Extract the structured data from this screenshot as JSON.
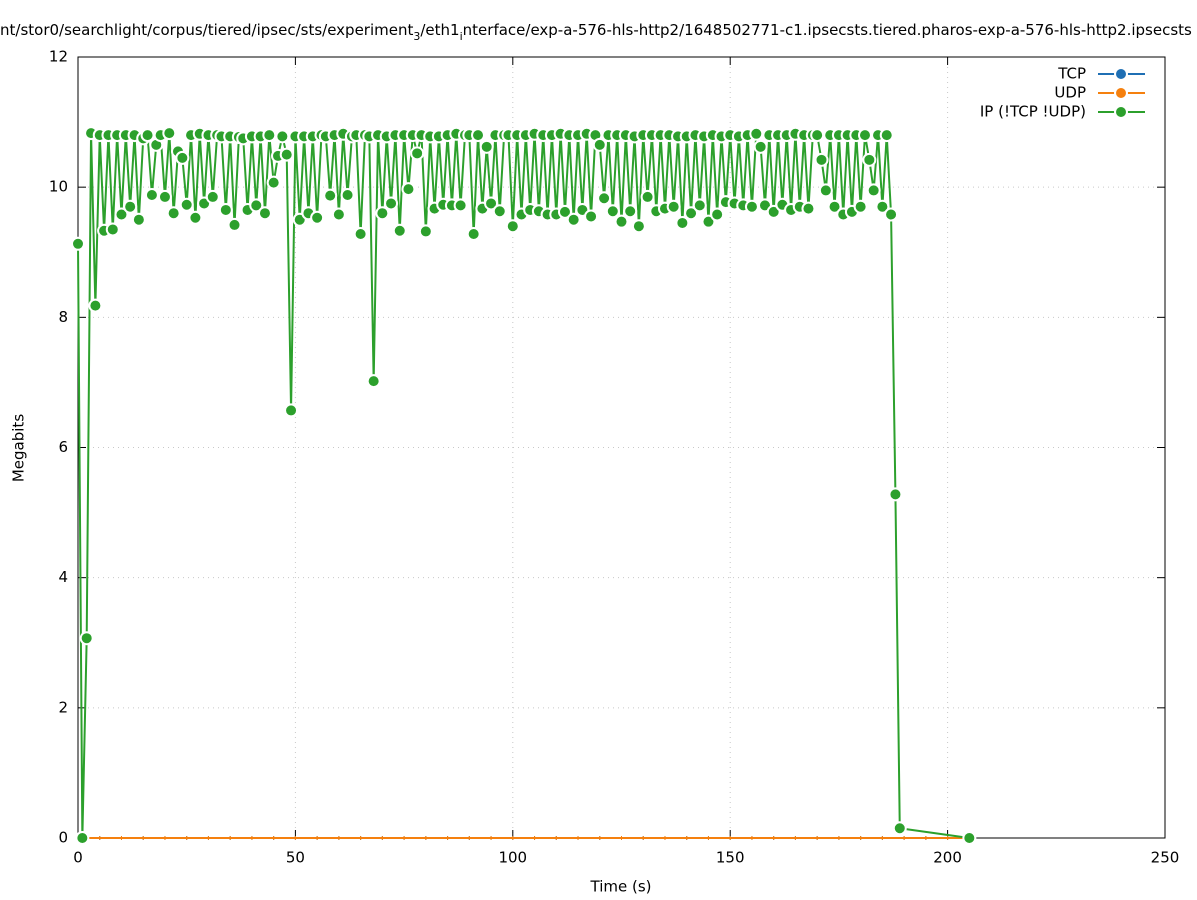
{
  "chart_data": {
    "type": "line",
    "title": [
      "nt/stor0/searchlight/corpus/tiered/ipsec/sts/experiment",
      "3",
      "/eth1",
      "i",
      "nterface/exp-a-576-hls-http2/1648502771-c1.ipsecsts.tiered.pharos-exp-a-576-hls-http2.ipsecsts"
    ],
    "xlabel": "Time (s)",
    "ylabel": "Megabits",
    "xlim": [
      0,
      250
    ],
    "ylim": [
      0,
      12
    ],
    "xticks": [
      0,
      50,
      100,
      150,
      200,
      250
    ],
    "yticks": [
      0,
      2,
      4,
      6,
      8,
      10,
      12
    ],
    "grid": true,
    "legend": "top-right",
    "series": [
      {
        "name": "TCP",
        "color": "#1f6fb4",
        "x": [
          0,
          5,
          10,
          15,
          20,
          25,
          30,
          35,
          40,
          45,
          50,
          55,
          60,
          65,
          70,
          75,
          80,
          85,
          90,
          95,
          100,
          105,
          110,
          115,
          120,
          125,
          130,
          135,
          140,
          145,
          150,
          155,
          160,
          165,
          170,
          175,
          180,
          185,
          190,
          195,
          200,
          205
        ],
        "values": [
          0,
          0,
          0,
          0,
          0,
          0,
          0,
          0,
          0,
          0,
          0,
          0,
          0,
          0,
          0,
          0,
          0,
          0,
          0,
          0,
          0,
          0,
          0,
          0,
          0,
          0,
          0,
          0,
          0,
          0,
          0,
          0,
          0,
          0,
          0,
          0,
          0,
          0,
          0,
          0,
          0,
          0
        ]
      },
      {
        "name": "UDP",
        "color": "#f5800e",
        "x": [
          0,
          5,
          10,
          15,
          20,
          25,
          30,
          35,
          40,
          45,
          50,
          55,
          60,
          65,
          70,
          75,
          80,
          85,
          90,
          95,
          100,
          105,
          110,
          115,
          120,
          125,
          130,
          135,
          140,
          145,
          150,
          155,
          160,
          165,
          170,
          175,
          180,
          185,
          190,
          195,
          200,
          205
        ],
        "values": [
          0,
          0,
          0,
          0,
          0,
          0,
          0,
          0,
          0,
          0,
          0,
          0,
          0,
          0,
          0,
          0,
          0,
          0,
          0,
          0,
          0,
          0,
          0,
          0,
          0,
          0,
          0,
          0,
          0,
          0,
          0,
          0,
          0,
          0,
          0,
          0,
          0,
          0,
          0,
          0,
          0,
          0
        ]
      },
      {
        "name": "IP (!TCP  !UDP)",
        "color": "#2ca02c",
        "x": [
          0,
          1,
          2,
          3,
          4,
          5,
          6,
          7,
          8,
          9,
          10,
          11,
          12,
          13,
          14,
          15,
          16,
          17,
          18,
          19,
          20,
          21,
          22,
          23,
          24,
          25,
          26,
          27,
          28,
          29,
          30,
          31,
          32,
          33,
          34,
          35,
          36,
          37,
          38,
          39,
          40,
          41,
          42,
          43,
          44,
          45,
          46,
          47,
          48,
          49,
          50,
          51,
          52,
          53,
          54,
          55,
          56,
          57,
          58,
          59,
          60,
          61,
          62,
          63,
          64,
          65,
          66,
          67,
          68,
          69,
          70,
          71,
          72,
          73,
          74,
          75,
          76,
          77,
          78,
          79,
          80,
          81,
          82,
          83,
          84,
          85,
          86,
          87,
          88,
          89,
          90,
          91,
          92,
          93,
          94,
          95,
          96,
          97,
          98,
          99,
          100,
          101,
          102,
          103,
          104,
          105,
          106,
          107,
          108,
          109,
          110,
          111,
          112,
          113,
          114,
          115,
          116,
          117,
          118,
          119,
          120,
          121,
          122,
          123,
          124,
          125,
          126,
          127,
          128,
          129,
          130,
          131,
          132,
          133,
          134,
          135,
          136,
          137,
          138,
          139,
          140,
          141,
          142,
          143,
          144,
          145,
          146,
          147,
          148,
          149,
          150,
          151,
          152,
          153,
          154,
          155,
          156,
          157,
          158,
          159,
          160,
          161,
          162,
          163,
          164,
          165,
          166,
          167,
          168,
          169,
          170,
          171,
          172,
          173,
          174,
          175,
          176,
          177,
          178,
          179,
          180,
          181,
          182,
          183,
          184,
          185,
          186,
          187,
          188,
          189,
          205
        ],
        "values": [
          9.13,
          0,
          3.07,
          10.83,
          8.18,
          10.8,
          9.33,
          10.8,
          9.35,
          10.8,
          9.58,
          10.8,
          9.7,
          10.8,
          9.5,
          10.75,
          10.8,
          9.88,
          10.65,
          10.8,
          9.85,
          10.83,
          9.6,
          10.55,
          10.45,
          9.73,
          10.8,
          9.53,
          10.82,
          9.75,
          10.8,
          9.85,
          10.8,
          10.78,
          9.65,
          10.78,
          9.42,
          10.77,
          10.75,
          9.65,
          10.78,
          9.72,
          10.78,
          9.6,
          10.8,
          10.07,
          10.48,
          10.78,
          10.5,
          6.57,
          10.78,
          9.5,
          10.78,
          9.6,
          10.78,
          9.53,
          10.8,
          10.78,
          9.87,
          10.8,
          9.58,
          10.82,
          9.88,
          10.78,
          10.8,
          9.28,
          10.8,
          10.78,
          7.02,
          10.8,
          9.6,
          10.78,
          9.75,
          10.8,
          9.33,
          10.8,
          9.97,
          10.8,
          10.52,
          10.8,
          9.32,
          10.78,
          9.67,
          10.78,
          9.73,
          10.8,
          9.72,
          10.82,
          9.72,
          10.8,
          10.8,
          9.28,
          10.8,
          9.67,
          10.62,
          9.75,
          10.8,
          9.63,
          10.8,
          10.8,
          9.4,
          10.8,
          9.58,
          10.8,
          9.65,
          10.82,
          9.63,
          10.8,
          9.58,
          10.8,
          9.58,
          10.82,
          9.62,
          10.8,
          9.5,
          10.8,
          9.65,
          10.82,
          9.55,
          10.8,
          10.65,
          9.83,
          10.8,
          9.63,
          10.8,
          9.47,
          10.8,
          9.63,
          10.78,
          9.4,
          10.8,
          9.85,
          10.8,
          9.63,
          10.8,
          9.67,
          10.8,
          9.7,
          10.78,
          9.45,
          10.78,
          9.6,
          10.8,
          9.72,
          10.78,
          9.47,
          10.8,
          9.58,
          10.78,
          9.77,
          10.8,
          9.75,
          10.78,
          9.72,
          10.8,
          9.7,
          10.82,
          10.62,
          9.72,
          10.8,
          9.62,
          10.8,
          9.73,
          10.8,
          9.65,
          10.82,
          9.7,
          10.8,
          9.67,
          10.8,
          10.8,
          10.42,
          9.95,
          10.8,
          9.7,
          10.8,
          9.58,
          10.8,
          9.62,
          10.8,
          9.7,
          10.8,
          10.42,
          9.95,
          10.8,
          9.7,
          10.8,
          9.58,
          5.28,
          0.15,
          0
        ]
      }
    ]
  }
}
